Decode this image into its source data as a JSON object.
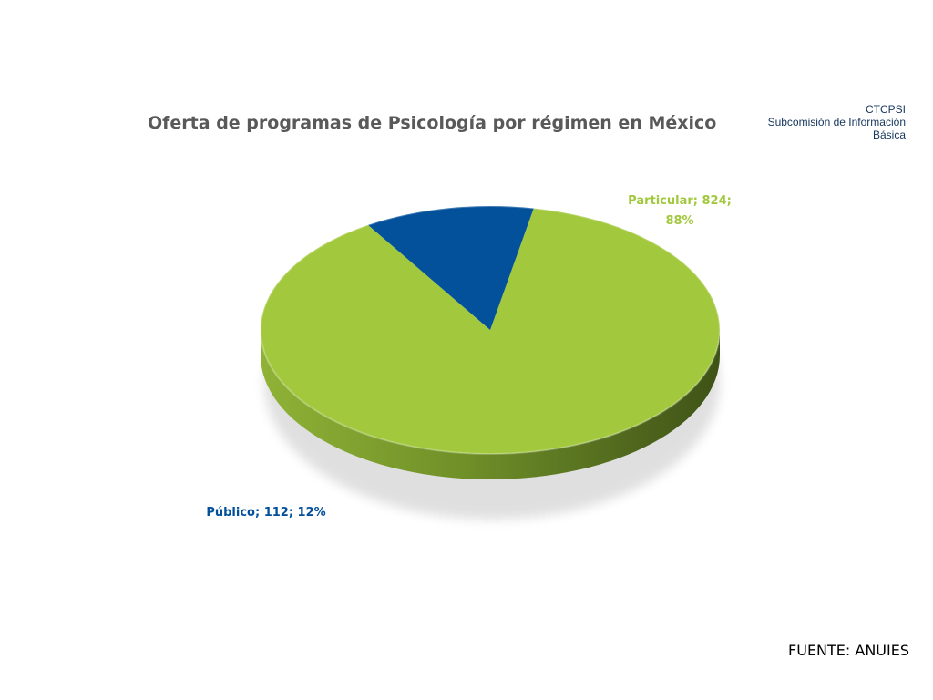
{
  "header": {
    "org_lines": [
      "CTCPSI",
      "Subcomisión de Información",
      "Básica"
    ]
  },
  "footer": {
    "source": "FUENTE: ANUIES"
  },
  "colors": {
    "particular": "#a2c93e",
    "publico": "#03519b"
  },
  "chart_data": {
    "type": "pie",
    "title": "Oferta de programas de Psicología por régimen en México",
    "categories": [
      "Particular",
      "Público"
    ],
    "values": [
      824,
      112
    ],
    "percents": [
      88,
      12
    ],
    "data_labels": [
      {
        "line1": "Particular; 824;",
        "line2": "88%"
      },
      {
        "line1": "Público; 112; 12%",
        "line2": ""
      }
    ],
    "legend": "none",
    "style": "3d"
  }
}
